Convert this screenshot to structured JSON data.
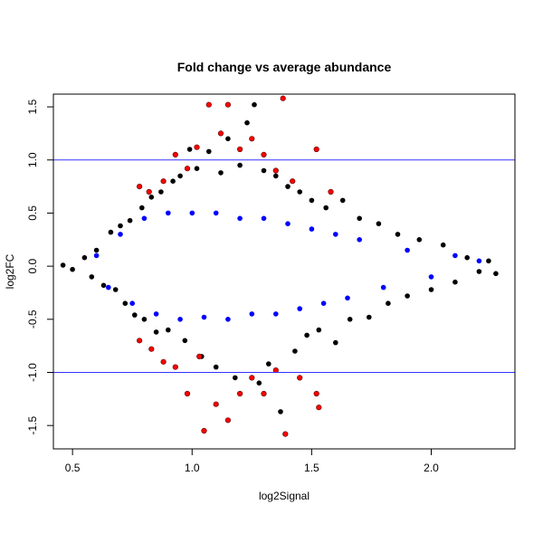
{
  "chart_data": {
    "type": "scatter",
    "title": "Fold change vs average abundance",
    "xlabel": "log2Signal",
    "ylabel": "log2FC",
    "xlim": [
      0.42,
      2.35
    ],
    "ylim": [
      -1.72,
      1.62
    ],
    "xticks": [
      0.5,
      1.0,
      1.5,
      2.0
    ],
    "yticks": [
      -1.5,
      -1.0,
      -0.5,
      0.0,
      0.5,
      1.0,
      1.5
    ],
    "hlines": [
      {
        "y": 1.0,
        "color": "#3333ff"
      },
      {
        "y": -1.0,
        "color": "#3333ff"
      }
    ],
    "series": [
      {
        "color": "#000000",
        "points": [
          [
            0.46,
            0.01
          ],
          [
            0.5,
            -0.03
          ],
          [
            0.55,
            0.08
          ],
          [
            0.58,
            -0.1
          ],
          [
            0.6,
            0.15
          ],
          [
            0.63,
            -0.18
          ],
          [
            0.66,
            0.32
          ],
          [
            0.68,
            -0.22
          ],
          [
            0.7,
            0.38
          ],
          [
            0.72,
            -0.35
          ],
          [
            0.74,
            0.43
          ],
          [
            0.76,
            -0.46
          ],
          [
            0.79,
            0.55
          ],
          [
            0.8,
            -0.5
          ],
          [
            0.83,
            0.65
          ],
          [
            0.85,
            -0.62
          ],
          [
            0.87,
            0.7
          ],
          [
            0.9,
            -0.6
          ],
          [
            0.92,
            0.8
          ],
          [
            0.95,
            0.85
          ],
          [
            0.97,
            -0.7
          ],
          [
            0.99,
            1.1
          ],
          [
            1.02,
            0.92
          ],
          [
            1.04,
            -0.85
          ],
          [
            1.07,
            1.08
          ],
          [
            1.1,
            -0.95
          ],
          [
            1.12,
            0.88
          ],
          [
            1.15,
            1.2
          ],
          [
            1.18,
            -1.05
          ],
          [
            1.2,
            0.95
          ],
          [
            1.23,
            1.35
          ],
          [
            1.26,
            1.52
          ],
          [
            1.28,
            -1.1
          ],
          [
            1.3,
            0.9
          ],
          [
            1.32,
            -0.92
          ],
          [
            1.35,
            0.85
          ],
          [
            1.37,
            -1.37
          ],
          [
            1.4,
            0.75
          ],
          [
            1.43,
            -0.8
          ],
          [
            1.45,
            0.7
          ],
          [
            1.48,
            -0.65
          ],
          [
            1.5,
            0.62
          ],
          [
            1.53,
            -0.6
          ],
          [
            1.56,
            0.55
          ],
          [
            1.6,
            -0.72
          ],
          [
            1.63,
            0.62
          ],
          [
            1.66,
            -0.5
          ],
          [
            1.7,
            0.45
          ],
          [
            1.74,
            -0.48
          ],
          [
            1.78,
            0.4
          ],
          [
            1.82,
            -0.35
          ],
          [
            1.86,
            0.3
          ],
          [
            1.9,
            -0.28
          ],
          [
            1.95,
            0.25
          ],
          [
            2.0,
            -0.22
          ],
          [
            2.05,
            0.2
          ],
          [
            2.1,
            -0.15
          ],
          [
            2.15,
            0.08
          ],
          [
            2.2,
            -0.05
          ],
          [
            2.24,
            0.05
          ],
          [
            2.27,
            -0.07
          ]
        ]
      },
      {
        "color": "#0000ff",
        "points": [
          [
            0.6,
            0.1
          ],
          [
            0.65,
            -0.2
          ],
          [
            0.7,
            0.3
          ],
          [
            0.75,
            -0.35
          ],
          [
            0.8,
            0.45
          ],
          [
            0.85,
            -0.45
          ],
          [
            0.9,
            0.5
          ],
          [
            0.95,
            -0.5
          ],
          [
            1.0,
            0.5
          ],
          [
            1.05,
            -0.48
          ],
          [
            1.1,
            0.5
          ],
          [
            1.15,
            -0.5
          ],
          [
            1.2,
            0.45
          ],
          [
            1.25,
            -0.45
          ],
          [
            1.3,
            0.45
          ],
          [
            1.35,
            -0.45
          ],
          [
            1.4,
            0.4
          ],
          [
            1.45,
            -0.4
          ],
          [
            1.5,
            0.35
          ],
          [
            1.55,
            -0.35
          ],
          [
            1.6,
            0.3
          ],
          [
            1.65,
            -0.3
          ],
          [
            1.7,
            0.25
          ],
          [
            1.8,
            -0.2
          ],
          [
            1.9,
            0.15
          ],
          [
            2.0,
            -0.1
          ],
          [
            2.1,
            0.1
          ],
          [
            2.2,
            0.05
          ]
        ]
      },
      {
        "color": "#ff0000",
        "points": [
          [
            0.78,
            0.75
          ],
          [
            0.82,
            0.7
          ],
          [
            0.88,
            0.8
          ],
          [
            0.93,
            1.05
          ],
          [
            0.98,
            0.92
          ],
          [
            1.02,
            1.12
          ],
          [
            1.07,
            1.52
          ],
          [
            1.12,
            1.25
          ],
          [
            1.15,
            1.52
          ],
          [
            1.2,
            1.1
          ],
          [
            1.25,
            1.2
          ],
          [
            1.3,
            1.05
          ],
          [
            1.35,
            0.9
          ],
          [
            1.38,
            1.58
          ],
          [
            1.42,
            0.8
          ],
          [
            1.52,
            1.1
          ],
          [
            1.58,
            0.7
          ],
          [
            0.78,
            -0.7
          ],
          [
            0.83,
            -0.78
          ],
          [
            0.88,
            -0.9
          ],
          [
            0.93,
            -0.95
          ],
          [
            0.98,
            -1.2
          ],
          [
            1.03,
            -0.85
          ],
          [
            1.05,
            -1.55
          ],
          [
            1.1,
            -1.3
          ],
          [
            1.15,
            -1.45
          ],
          [
            1.2,
            -1.2
          ],
          [
            1.25,
            -1.05
          ],
          [
            1.3,
            -1.2
          ],
          [
            1.35,
            -0.98
          ],
          [
            1.39,
            -1.58
          ],
          [
            1.45,
            -1.05
          ],
          [
            1.52,
            -1.2
          ],
          [
            1.53,
            -1.33
          ]
        ]
      }
    ]
  }
}
